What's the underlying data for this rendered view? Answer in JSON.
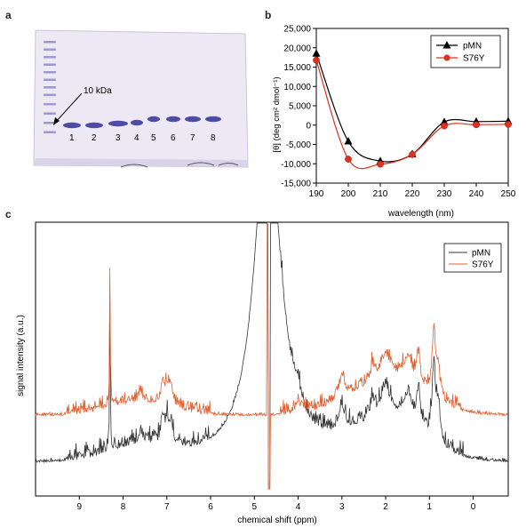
{
  "panel_a": {
    "letter": "a",
    "marker_label": "10 kDa",
    "lanes": [
      "1",
      "2",
      "3",
      "4",
      "5",
      "6",
      "7",
      "8"
    ],
    "gel_color": "#e8e4f2",
    "band_color": "#3d3a9e"
  },
  "chart_data": [
    {
      "type": "line",
      "panel": "b",
      "xlabel": "wavelength (nm)",
      "ylabel": "[θ] (deg cm² dmol⁻¹)",
      "xlim": [
        190,
        250
      ],
      "ylim": [
        -15000,
        25000
      ],
      "x_ticks": [
        190,
        200,
        210,
        220,
        230,
        240,
        250
      ],
      "y_ticks": [
        -15000,
        -10000,
        -5000,
        0,
        5000,
        10000,
        15000,
        20000,
        25000
      ],
      "y_tick_labels": [
        "-15,000",
        "-10,000",
        "-5,000",
        "0",
        "5,000",
        "10,000",
        "15,000",
        "20,000",
        "25,000"
      ],
      "legend": "top-right",
      "grid": false,
      "series": [
        {
          "name": "pMN",
          "color": "#000000",
          "marker": "triangle",
          "x": [
            190,
            200,
            210,
            220,
            230,
            240,
            250
          ],
          "y": [
            18500,
            -4200,
            -9300,
            -7500,
            800,
            900,
            1000
          ]
        },
        {
          "name": "S76Y",
          "color": "#e0301e",
          "marker": "circle",
          "x": [
            190,
            200,
            210,
            220,
            230,
            240,
            250
          ],
          "y": [
            16800,
            -8800,
            -10100,
            -7600,
            -200,
            100,
            200
          ]
        }
      ]
    },
    {
      "type": "line",
      "panel": "c",
      "xlabel": "chemical shift (ppm)",
      "ylabel": "signal intensity (a.u.)",
      "xlim": [
        10,
        -0.8
      ],
      "x_ticks": [
        9,
        8,
        7,
        6,
        5,
        4,
        3,
        2,
        1,
        0
      ],
      "legend": "top-right",
      "series": [
        {
          "name": "pMN",
          "color": "#333333"
        },
        {
          "name": "S76Y",
          "color": "#e06030"
        }
      ]
    }
  ],
  "panel_letters": {
    "b": "b",
    "c": "c"
  }
}
